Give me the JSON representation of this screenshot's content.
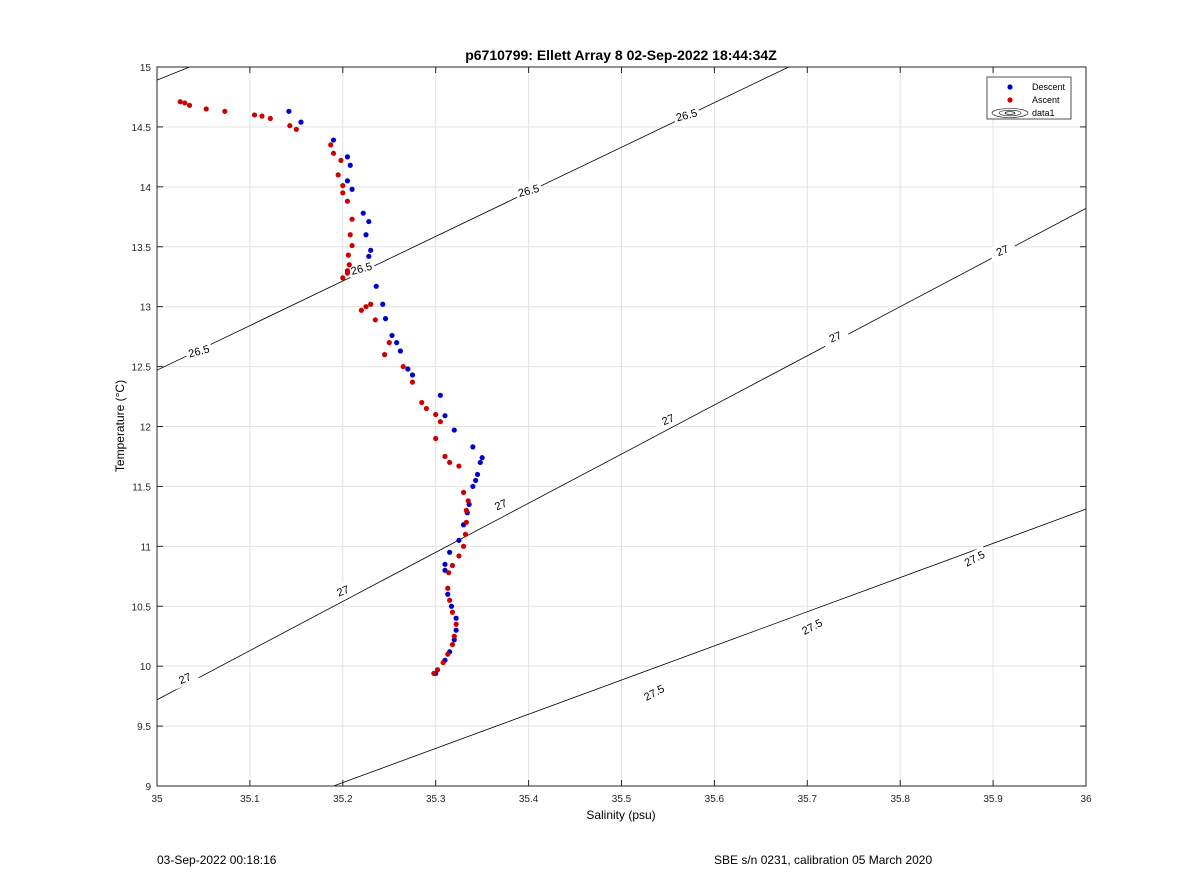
{
  "chart_data": {
    "type": "scatter",
    "title": "p6710799: Ellett Array 8 02-Sep-2022 18:44:34Z",
    "xlabel": "Salinity (psu)",
    "ylabel": "Temperature (°C)",
    "xlim": [
      35,
      36
    ],
    "ylim": [
      9,
      15
    ],
    "xticks": [
      "35",
      "35.1",
      "35.2",
      "35.3",
      "35.4",
      "35.5",
      "35.6",
      "35.7",
      "35.8",
      "35.9",
      "36"
    ],
    "yticks": [
      "9",
      "9.5",
      "10",
      "10.5",
      "11",
      "11.5",
      "12",
      "12.5",
      "13",
      "13.5",
      "14",
      "14.5",
      "15"
    ],
    "grid": true,
    "legend_position": "top-right",
    "legend": [
      "Descent",
      "Ascent",
      "data1"
    ],
    "density_contours": {
      "name": "data1",
      "lines": [
        {
          "label": "26.5",
          "points": [
            [
              35.0,
              14.89
            ],
            [
              35.035,
              15.0
            ]
          ]
        },
        {
          "label": "26.5",
          "points": [
            [
              35.0,
              12.47
            ],
            [
              35.68,
              15.0
            ]
          ]
        },
        {
          "label": "27",
          "points": [
            [
              35.0,
              9.72
            ],
            [
              36.0,
              13.82
            ]
          ]
        },
        {
          "label": "27.5",
          "points": [
            [
              35.19,
              9.0
            ],
            [
              36.0,
              11.31
            ]
          ]
        }
      ],
      "labels": [
        {
          "text": "26.5",
          "s": 35.57,
          "t": 14.6,
          "angle": -15
        },
        {
          "text": "26.5",
          "s": 35.4,
          "t": 13.97,
          "angle": -15
        },
        {
          "text": "26.5",
          "s": 35.22,
          "t": 13.32,
          "angle": -15
        },
        {
          "text": "26.5",
          "s": 35.045,
          "t": 12.63,
          "angle": -15
        },
        {
          "text": "27",
          "s": 35.91,
          "t": 13.47,
          "angle": -23
        },
        {
          "text": "27",
          "s": 35.73,
          "t": 12.75,
          "angle": -23
        },
        {
          "text": "27",
          "s": 35.55,
          "t": 12.06,
          "angle": -23
        },
        {
          "text": "27",
          "s": 35.37,
          "t": 11.35,
          "angle": -23
        },
        {
          "text": "27",
          "s": 35.2,
          "t": 10.63,
          "angle": -23
        },
        {
          "text": "27",
          "s": 35.03,
          "t": 9.9,
          "angle": -23
        },
        {
          "text": "27.5",
          "s": 35.88,
          "t": 10.9,
          "angle": -28
        },
        {
          "text": "27.5",
          "s": 35.705,
          "t": 10.33,
          "angle": -28
        },
        {
          "text": "27.5",
          "s": 35.535,
          "t": 9.78,
          "angle": -28
        }
      ]
    },
    "series": [
      {
        "name": "Descent",
        "color": "#0000cc",
        "points": [
          [
            35.142,
            14.63
          ],
          [
            35.155,
            14.54
          ],
          [
            35.19,
            14.39
          ],
          [
            35.205,
            14.25
          ],
          [
            35.208,
            14.18
          ],
          [
            35.205,
            14.05
          ],
          [
            35.21,
            13.98
          ],
          [
            35.222,
            13.78
          ],
          [
            35.228,
            13.71
          ],
          [
            35.225,
            13.6
          ],
          [
            35.23,
            13.47
          ],
          [
            35.228,
            13.42
          ],
          [
            35.236,
            13.17
          ],
          [
            35.243,
            13.02
          ],
          [
            35.246,
            12.9
          ],
          [
            35.253,
            12.76
          ],
          [
            35.258,
            12.7
          ],
          [
            35.262,
            12.63
          ],
          [
            35.27,
            12.48
          ],
          [
            35.275,
            12.43
          ],
          [
            35.305,
            12.26
          ],
          [
            35.31,
            12.09
          ],
          [
            35.32,
            11.97
          ],
          [
            35.34,
            11.83
          ],
          [
            35.35,
            11.74
          ],
          [
            35.348,
            11.7
          ],
          [
            35.345,
            11.6
          ],
          [
            35.343,
            11.55
          ],
          [
            35.34,
            11.5
          ],
          [
            35.336,
            11.35
          ],
          [
            35.334,
            11.28
          ],
          [
            35.33,
            11.18
          ],
          [
            35.325,
            11.05
          ],
          [
            35.315,
            10.95
          ],
          [
            35.31,
            10.85
          ],
          [
            35.31,
            10.8
          ],
          [
            35.313,
            10.6
          ],
          [
            35.317,
            10.5
          ],
          [
            35.322,
            10.4
          ],
          [
            35.322,
            10.3
          ],
          [
            35.32,
            10.22
          ],
          [
            35.315,
            10.12
          ],
          [
            35.31,
            10.05
          ],
          [
            35.3,
            9.94
          ]
        ]
      },
      {
        "name": "Ascent",
        "color": "#cc0000",
        "points": [
          [
            35.025,
            14.71
          ],
          [
            35.03,
            14.7
          ],
          [
            35.035,
            14.68
          ],
          [
            35.053,
            14.65
          ],
          [
            35.073,
            14.63
          ],
          [
            35.105,
            14.6
          ],
          [
            35.113,
            14.59
          ],
          [
            35.122,
            14.57
          ],
          [
            35.143,
            14.51
          ],
          [
            35.15,
            14.48
          ],
          [
            35.187,
            14.35
          ],
          [
            35.19,
            14.28
          ],
          [
            35.198,
            14.22
          ],
          [
            35.195,
            14.1
          ],
          [
            35.2,
            14.01
          ],
          [
            35.2,
            13.95
          ],
          [
            35.205,
            13.88
          ],
          [
            35.21,
            13.73
          ],
          [
            35.208,
            13.6
          ],
          [
            35.21,
            13.51
          ],
          [
            35.206,
            13.43
          ],
          [
            35.207,
            13.35
          ],
          [
            35.205,
            13.3
          ],
          [
            35.205,
            13.28
          ],
          [
            35.2,
            13.24
          ],
          [
            35.225,
            13.0
          ],
          [
            35.23,
            13.02
          ],
          [
            35.22,
            12.97
          ],
          [
            35.235,
            12.89
          ],
          [
            35.25,
            12.7
          ],
          [
            35.245,
            12.6
          ],
          [
            35.265,
            12.5
          ],
          [
            35.275,
            12.37
          ],
          [
            35.285,
            12.2
          ],
          [
            35.29,
            12.15
          ],
          [
            35.3,
            12.1
          ],
          [
            35.305,
            12.04
          ],
          [
            35.3,
            11.9
          ],
          [
            35.31,
            11.75
          ],
          [
            35.315,
            11.7
          ],
          [
            35.325,
            11.67
          ],
          [
            35.33,
            11.45
          ],
          [
            35.335,
            11.38
          ],
          [
            35.333,
            11.3
          ],
          [
            35.333,
            11.2
          ],
          [
            35.332,
            11.1
          ],
          [
            35.33,
            11.0
          ],
          [
            35.325,
            10.92
          ],
          [
            35.318,
            10.84
          ],
          [
            35.314,
            10.78
          ],
          [
            35.313,
            10.65
          ],
          [
            35.315,
            10.55
          ],
          [
            35.318,
            10.45
          ],
          [
            35.322,
            10.35
          ],
          [
            35.32,
            10.25
          ],
          [
            35.318,
            10.18
          ],
          [
            35.313,
            10.1
          ],
          [
            35.308,
            10.03
          ],
          [
            35.302,
            9.97
          ],
          [
            35.298,
            9.94
          ]
        ]
      }
    ]
  },
  "footer": {
    "left": "03-Sep-2022 00:18:16",
    "right": "SBE s/n 0231, calibration 05 March 2020"
  }
}
